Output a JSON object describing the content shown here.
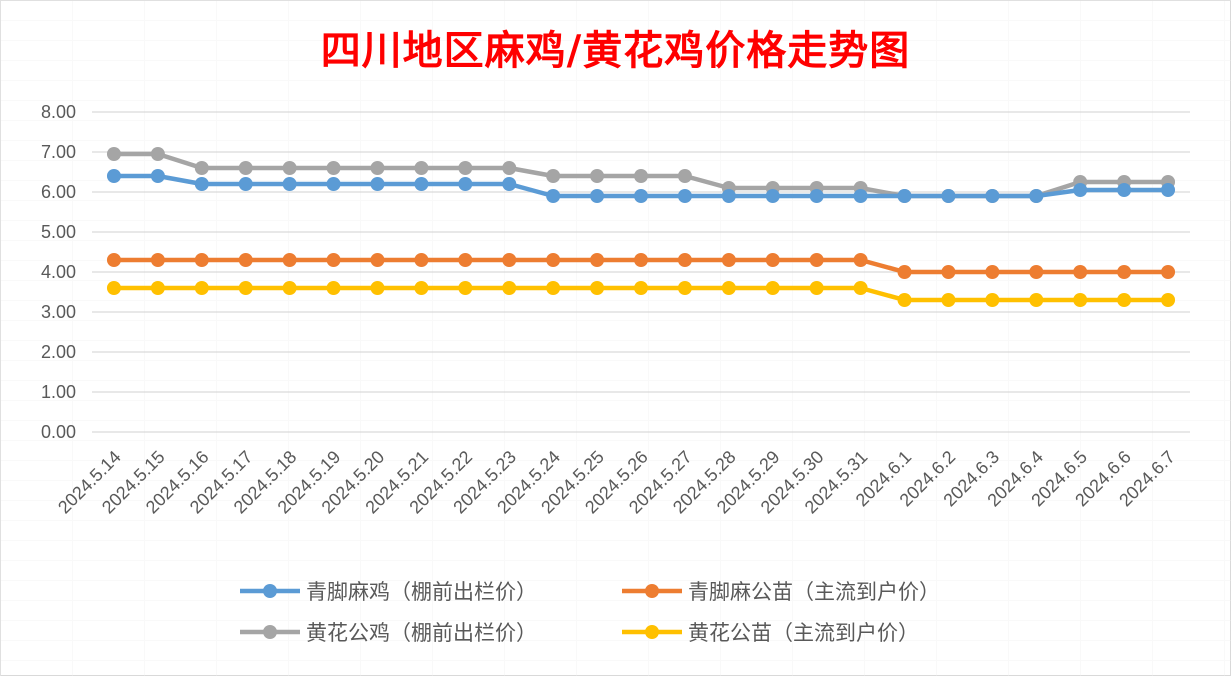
{
  "chart_data": {
    "type": "line",
    "title": "四川地区麻鸡/黄花鸡价格走势图",
    "categories": [
      "2024.5.14",
      "2024.5.15",
      "2024.5.16",
      "2024.5.17",
      "2024.5.18",
      "2024.5.19",
      "2024.5.20",
      "2024.5.21",
      "2024.5.22",
      "2024.5.23",
      "2024.5.24",
      "2024.5.25",
      "2024.5.26",
      "2024.5.27",
      "2024.5.28",
      "2024.5.29",
      "2024.5.30",
      "2024.5.31",
      "2024.6.1",
      "2024.6.2",
      "2024.6.3",
      "2024.6.4",
      "2024.6.5",
      "2024.6.6",
      "2024.6.7"
    ],
    "ylim": [
      0,
      8
    ],
    "yticks": [
      "0.00",
      "1.00",
      "2.00",
      "3.00",
      "4.00",
      "5.00",
      "6.00",
      "7.00",
      "8.00"
    ],
    "grid": true,
    "legend_position": "bottom",
    "series": [
      {
        "name": "青脚麻鸡（棚前出栏价）",
        "color": "#5b9bd5",
        "values": [
          6.4,
          6.4,
          6.2,
          6.2,
          6.2,
          6.2,
          6.2,
          6.2,
          6.2,
          6.2,
          5.9,
          5.9,
          5.9,
          5.9,
          5.9,
          5.9,
          5.9,
          5.9,
          5.9,
          5.9,
          5.9,
          5.9,
          6.05,
          6.05,
          6.05
        ]
      },
      {
        "name": "青脚麻公苗（主流到户价）",
        "color": "#ed7d31",
        "values": [
          4.3,
          4.3,
          4.3,
          4.3,
          4.3,
          4.3,
          4.3,
          4.3,
          4.3,
          4.3,
          4.3,
          4.3,
          4.3,
          4.3,
          4.3,
          4.3,
          4.3,
          4.3,
          4.0,
          4.0,
          4.0,
          4.0,
          4.0,
          4.0,
          4.0
        ]
      },
      {
        "name": "黄花公鸡（棚前出栏价）",
        "color": "#a5a5a5",
        "values": [
          6.95,
          6.95,
          6.6,
          6.6,
          6.6,
          6.6,
          6.6,
          6.6,
          6.6,
          6.6,
          6.4,
          6.4,
          6.4,
          6.4,
          6.1,
          6.1,
          6.1,
          6.1,
          5.9,
          5.9,
          5.9,
          5.9,
          6.25,
          6.25,
          6.25
        ]
      },
      {
        "name": "黄花公苗（主流到户价）",
        "color": "#ffc000",
        "values": [
          3.6,
          3.6,
          3.6,
          3.6,
          3.6,
          3.6,
          3.6,
          3.6,
          3.6,
          3.6,
          3.6,
          3.6,
          3.6,
          3.6,
          3.6,
          3.6,
          3.6,
          3.6,
          3.3,
          3.3,
          3.3,
          3.3,
          3.3,
          3.3,
          3.3
        ]
      }
    ]
  },
  "colors": {
    "title": "#ff0000",
    "gridline": "#d9d9d9",
    "axis_text": "#595959"
  }
}
